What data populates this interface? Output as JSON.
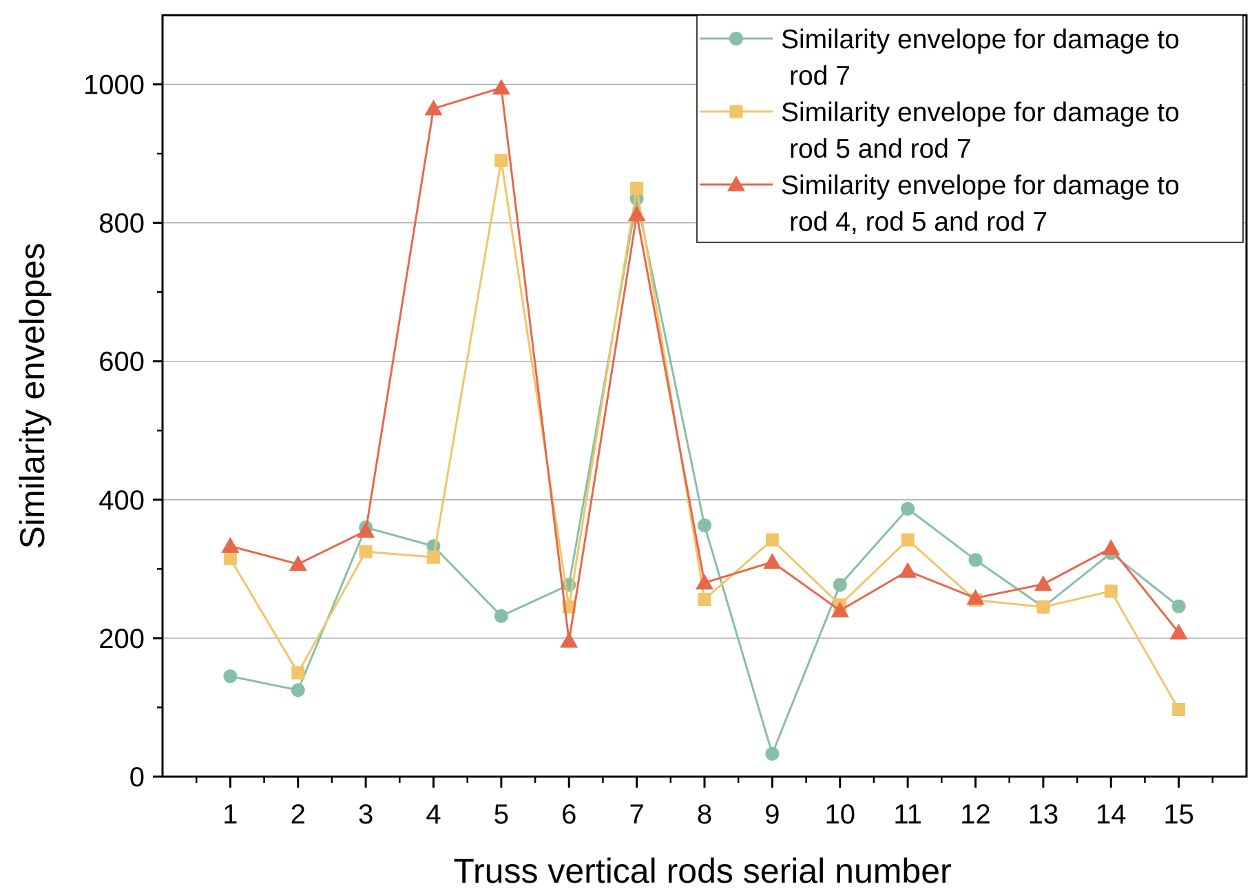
{
  "chart_data": {
    "type": "line",
    "title": "",
    "xlabel": "Truss vertical rods serial number",
    "ylabel": "Similarity envelopes",
    "x": [
      1,
      2,
      3,
      4,
      5,
      6,
      7,
      8,
      9,
      10,
      11,
      12,
      13,
      14,
      15
    ],
    "xlim": [
      0,
      16
    ],
    "ylim": [
      0,
      1100
    ],
    "yticks": [
      0,
      200,
      400,
      600,
      800,
      1000
    ],
    "grid": true,
    "legend_position": "top-right",
    "series": [
      {
        "name": "Similarity envelope for damage to rod 7",
        "legend_lines": [
          "Similarity envelope for damage to",
          "rod 7"
        ],
        "color": "#86bfa7",
        "marker": "circle",
        "values": [
          145,
          125,
          360,
          333,
          232,
          277,
          835,
          363,
          33,
          277,
          387,
          313,
          245,
          323,
          246
        ]
      },
      {
        "name": "Similarity envelope for damage to rod 5 and rod 7",
        "legend_lines": [
          "Similarity envelope for damage to",
          "rod 5 and rod 7"
        ],
        "color": "#f2c468",
        "marker": "square",
        "values": [
          315,
          150,
          325,
          317,
          890,
          245,
          850,
          256,
          342,
          248,
          342,
          255,
          245,
          268,
          97
        ]
      },
      {
        "name": "Similarity envelope for damage to rod 4, rod 5 and rod 7",
        "legend_lines": [
          "Similarity envelope for damage to",
          "rod 4, rod 5 and rod 7"
        ],
        "color": "#e8674a",
        "marker": "triangle",
        "values": [
          333,
          307,
          355,
          965,
          995,
          196,
          812,
          280,
          310,
          240,
          297,
          258,
          278,
          330,
          208
        ]
      }
    ]
  }
}
